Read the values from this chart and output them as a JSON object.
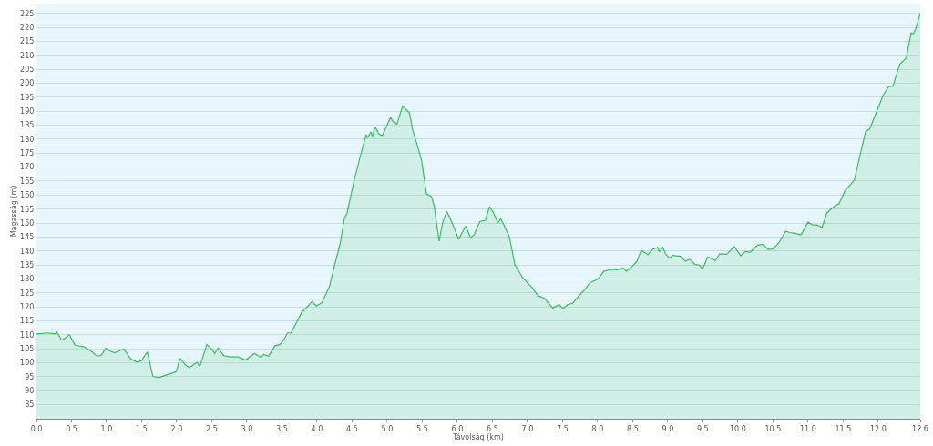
{
  "chart_data": {
    "type": "area",
    "xlabel": "Távolság (km)",
    "ylabel": "Magasság (m)",
    "x": [
      0,
      0.16,
      0.27,
      0.29,
      0.36,
      0.41,
      0.47,
      0.55,
      0.68,
      0.78,
      0.86,
      0.92,
      0.99,
      1.05,
      1.11,
      1.25,
      1.34,
      1.44,
      1.5,
      1.58,
      1.66,
      1.74,
      1.99,
      2.05,
      2.13,
      2.18,
      2.29,
      2.33,
      2.43,
      2.51,
      2.54,
      2.59,
      2.67,
      2.76,
      2.88,
      2.98,
      3.11,
      3.2,
      3.24,
      3.31,
      3.4,
      3.47,
      3.53,
      3.58,
      3.63,
      3.78,
      3.93,
      3.99,
      4.07,
      4.18,
      4.26,
      4.33,
      4.39,
      4.43,
      4.53,
      4.61,
      4.7,
      4.72,
      4.77,
      4.79,
      4.83,
      4.88,
      4.93,
      5.0,
      5.05,
      5.08,
      5.14,
      5.22,
      5.32,
      5.36,
      5.49,
      5.56,
      5.63,
      5.67,
      5.74,
      5.79,
      5.85,
      5.9,
      5.97,
      6.02,
      6.12,
      6.19,
      6.24,
      6.32,
      6.4,
      6.46,
      6.51,
      6.58,
      6.62,
      6.74,
      6.82,
      6.93,
      7.07,
      7.15,
      7.24,
      7.36,
      7.45,
      7.51,
      7.57,
      7.64,
      7.76,
      7.82,
      7.89,
      8.01,
      8.09,
      8.2,
      8.28,
      8.36,
      8.41,
      8.49,
      8.56,
      8.62,
      8.72,
      8.78,
      8.86,
      8.88,
      8.93,
      8.97,
      9.03,
      9.07,
      9.18,
      9.25,
      9.31,
      9.39,
      9.45,
      9.5,
      9.57,
      9.68,
      9.74,
      9.84,
      9.95,
      10.04,
      10.11,
      10.17,
      10.28,
      10.36,
      10.43,
      10.5,
      10.59,
      10.68,
      10.74,
      10.8,
      10.9,
      11.0,
      11.07,
      11.13,
      11.2,
      11.27,
      11.4,
      11.44,
      11.53,
      11.66,
      11.82,
      11.88,
      12.07,
      12.15,
      12.21,
      12.31,
      12.4,
      12.47,
      12.5,
      12.54,
      12.6
    ],
    "series": [
      {
        "color": "#3dbb5f",
        "values": [
          110.3,
          110.7,
          110.3,
          111.0,
          108.1,
          108.9,
          110.0,
          106.3,
          105.7,
          104.2,
          102.5,
          102.6,
          105.2,
          104.2,
          103.6,
          104.9,
          101.5,
          100.2,
          100.8,
          103.9,
          95.2,
          94.7,
          96.8,
          101.5,
          99.1,
          98.3,
          100.2,
          98.7,
          106.5,
          104.7,
          103.3,
          105.3,
          102.6,
          102.1,
          102.1,
          101.0,
          103.4,
          101.9,
          103.0,
          102.4,
          106.1,
          106.5,
          108.4,
          110.7,
          110.7,
          117.9,
          121.9,
          120.3,
          121.5,
          127.5,
          135.8,
          142.6,
          151.6,
          153.7,
          165.3,
          173.2,
          181.6,
          180.5,
          182.6,
          181.0,
          184.4,
          181.9,
          181.2,
          185.1,
          187.9,
          186.4,
          185.4,
          191.8,
          189.3,
          183.7,
          172.6,
          160.5,
          159.5,
          156.3,
          143.5,
          150.0,
          154.2,
          151.6,
          147.3,
          144.2,
          148.9,
          144.7,
          145.8,
          150.5,
          151.0,
          155.8,
          153.9,
          150.0,
          151.6,
          145.3,
          135.2,
          130.5,
          126.8,
          124.0,
          123.1,
          119.6,
          120.8,
          119.4,
          120.8,
          121.2,
          124.7,
          126.3,
          128.6,
          130.0,
          132.8,
          133.4,
          133.2,
          133.9,
          132.8,
          134.4,
          136.3,
          140.2,
          138.7,
          140.5,
          141.3,
          139.7,
          141.3,
          138.9,
          137.4,
          138.4,
          138.1,
          136.3,
          137.1,
          135.2,
          134.9,
          133.7,
          137.9,
          136.6,
          139.0,
          138.8,
          141.6,
          138.3,
          139.9,
          139.5,
          142.1,
          142.3,
          140.5,
          140.7,
          143.1,
          147.1,
          146.6,
          146.4,
          145.8,
          150.3,
          149.3,
          149.3,
          148.4,
          153.7,
          156.5,
          156.8,
          161.6,
          165.3,
          182.6,
          183.7,
          195.6,
          198.8,
          199.0,
          206.9,
          209.0,
          218.0,
          217.6,
          219.7,
          225.1
        ]
      }
    ],
    "xlim": [
      0,
      12.6
    ],
    "ylim": [
      80,
      228.5
    ],
    "xticks": [
      {
        "value": 0,
        "label": "0.0"
      },
      0.5,
      {
        "value": 1,
        "label": "1.0"
      },
      1.5,
      {
        "value": 2,
        "label": "2.0"
      },
      2.5,
      {
        "value": 3,
        "label": "3.0"
      },
      3.5,
      {
        "value": 4,
        "label": "4.0"
      },
      4.5,
      {
        "value": 5,
        "label": "5.0"
      },
      5.5,
      {
        "value": 6,
        "label": "6.0"
      },
      6.5,
      {
        "value": 7,
        "label": "7.0"
      },
      7.5,
      {
        "value": 8,
        "label": "8.0"
      },
      8.5,
      {
        "value": 9,
        "label": "9.0"
      },
      9.5,
      {
        "value": 10,
        "label": "10.0"
      },
      10.5,
      {
        "value": 11,
        "label": "11.0"
      },
      11.5,
      {
        "value": 12,
        "label": "12.0"
      },
      12.6
    ],
    "yticks": [
      85,
      90,
      95,
      100,
      105,
      110,
      115,
      120,
      125,
      130,
      135,
      140,
      145,
      150,
      155,
      160,
      165,
      170,
      175,
      180,
      185,
      190,
      195,
      200,
      205,
      210,
      215,
      220,
      225
    ],
    "grid": "y"
  }
}
